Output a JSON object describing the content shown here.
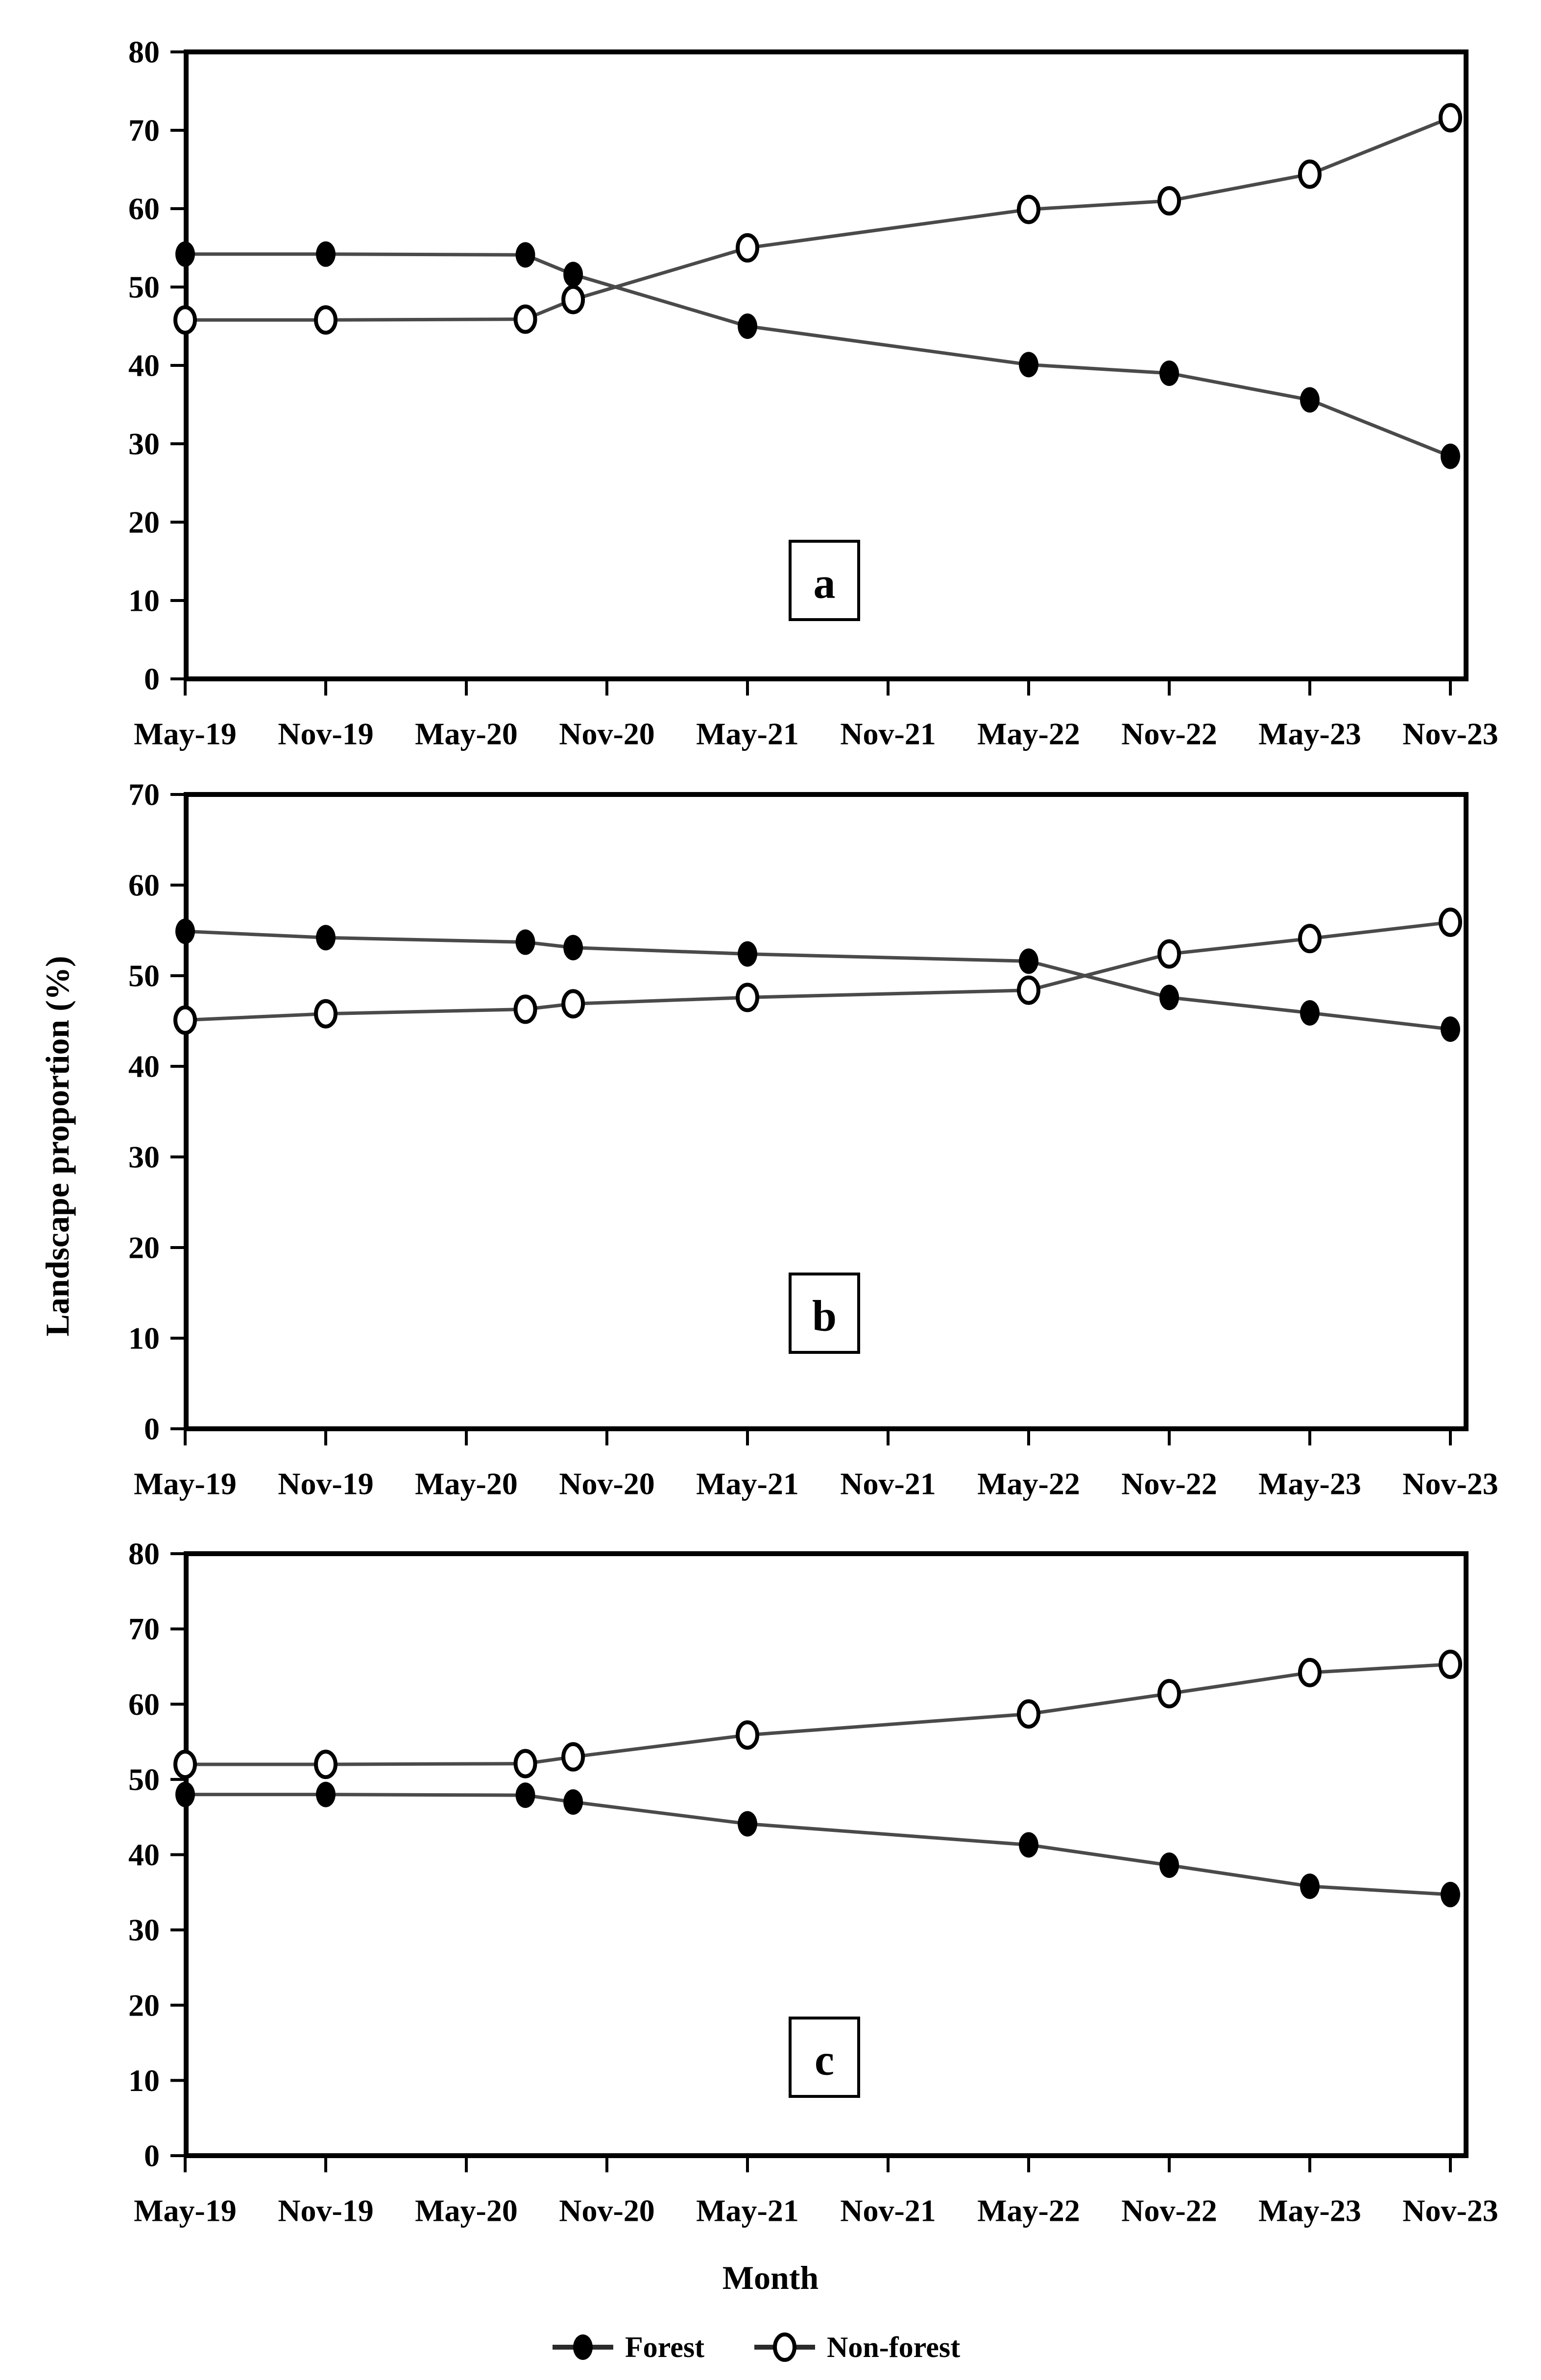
{
  "figure": {
    "y_axis_title": "Landscape proportion (%)",
    "x_axis_title": "Month",
    "legend": [
      {
        "label": "Forest",
        "marker": "filled"
      },
      {
        "label": "Non-forest",
        "marker": "open"
      }
    ],
    "colors": {
      "line": "#4a4a4a",
      "marker_filled": "#000000",
      "marker_open_fill": "#ffffff",
      "marker_stroke": "#000000",
      "axis": "#000000",
      "text": "#000000",
      "background": "#ffffff"
    }
  },
  "chart_data": [
    {
      "type": "line",
      "panel_label": "a",
      "title": "",
      "xlabel": "Month",
      "ylabel": "Landscape proportion (%)",
      "ylim": [
        0,
        80
      ],
      "ytick_step": 10,
      "grid": false,
      "legend_position": "bottom",
      "x_tick_labels": [
        "May-19",
        "Nov-19",
        "May-20",
        "Nov-20",
        "May-21",
        "Nov-21",
        "May-22",
        "Nov-22",
        "May-23",
        "Nov-23"
      ],
      "x": [
        "May-19",
        "Nov-19",
        "Jul-20",
        "Sep-20",
        "May-21",
        "May-22",
        "Nov-22",
        "May-23",
        "Nov-23"
      ],
      "x_positions": [
        0,
        1,
        2.42,
        2.76,
        4,
        6,
        7,
        8,
        9
      ],
      "series": [
        {
          "name": "Forest",
          "marker": "filled",
          "values": [
            54.2,
            54.2,
            54.1,
            51.6,
            45.0,
            40.1,
            39.0,
            35.6,
            28.4
          ]
        },
        {
          "name": "Non-forest",
          "marker": "open",
          "values": [
            45.8,
            45.8,
            45.9,
            48.4,
            55.0,
            59.9,
            61.0,
            64.4,
            71.6
          ]
        }
      ]
    },
    {
      "type": "line",
      "panel_label": "b",
      "title": "",
      "xlabel": "Month",
      "ylabel": "Landscape proportion (%)",
      "ylim": [
        0,
        70
      ],
      "ytick_step": 10,
      "grid": false,
      "legend_position": "bottom",
      "x_tick_labels": [
        "May-19",
        "Nov-19",
        "May-20",
        "Nov-20",
        "May-21",
        "Nov-21",
        "May-22",
        "Nov-22",
        "May-23",
        "Nov-23"
      ],
      "x": [
        "May-19",
        "Nov-19",
        "Jul-20",
        "Sep-20",
        "May-21",
        "May-22",
        "Nov-22",
        "May-23",
        "Nov-23"
      ],
      "x_positions": [
        0,
        1,
        2.42,
        2.76,
        4,
        6,
        7,
        8,
        9
      ],
      "series": [
        {
          "name": "Forest",
          "marker": "filled",
          "values": [
            54.9,
            54.2,
            53.7,
            53.1,
            52.4,
            51.6,
            47.6,
            45.9,
            44.1
          ]
        },
        {
          "name": "Non-forest",
          "marker": "open",
          "values": [
            45.1,
            45.8,
            46.3,
            46.9,
            47.6,
            48.4,
            52.4,
            54.1,
            55.9
          ]
        }
      ]
    },
    {
      "type": "line",
      "panel_label": "c",
      "title": "",
      "xlabel": "Month",
      "ylabel": "Landscape proportion (%)",
      "ylim": [
        0,
        80
      ],
      "ytick_step": 10,
      "grid": false,
      "legend_position": "bottom",
      "x_tick_labels": [
        "May-19",
        "Nov-19",
        "May-20",
        "Nov-20",
        "May-21",
        "Nov-21",
        "May-22",
        "Nov-22",
        "May-23",
        "Nov-23"
      ],
      "x": [
        "May-19",
        "Nov-19",
        "Jul-20",
        "Sep-20",
        "May-21",
        "May-22",
        "Nov-22",
        "May-23",
        "Nov-23"
      ],
      "x_positions": [
        0,
        1,
        2.42,
        2.76,
        4,
        6,
        7,
        8,
        9
      ],
      "series": [
        {
          "name": "Forest",
          "marker": "filled",
          "values": [
            48.0,
            48.0,
            47.9,
            47.0,
            44.1,
            41.3,
            38.6,
            35.8,
            34.7
          ]
        },
        {
          "name": "Non-forest",
          "marker": "open",
          "values": [
            52.0,
            52.0,
            52.1,
            53.0,
            55.9,
            58.7,
            61.4,
            64.2,
            65.3
          ]
        }
      ]
    }
  ]
}
